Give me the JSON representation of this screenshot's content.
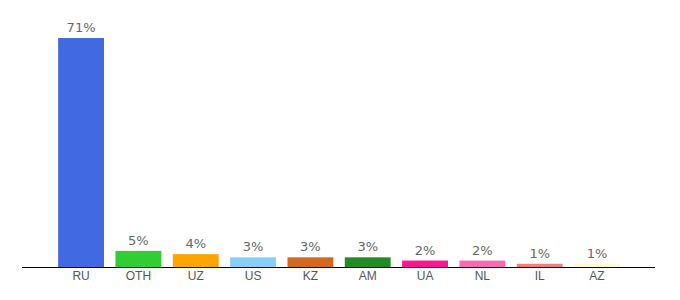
{
  "chart_data": {
    "type": "bar",
    "categories": [
      "RU",
      "OTH",
      "UZ",
      "US",
      "KZ",
      "AM",
      "UA",
      "NL",
      "IL",
      "AZ"
    ],
    "values": [
      71,
      5,
      4,
      3,
      3,
      3,
      2,
      2,
      1,
      1
    ],
    "value_labels": [
      "71%",
      "5%",
      "4%",
      "3%",
      "3%",
      "3%",
      "2%",
      "2%",
      "1%",
      "1%"
    ],
    "colors": [
      "#4169e1",
      "#32cd32",
      "#ffa500",
      "#87cefa",
      "#d2691e",
      "#228b22",
      "#ff1493",
      "#ff69b4",
      "#f08080",
      "#fffacd"
    ],
    "ylim": [
      0,
      71
    ],
    "data_labels": true,
    "tick_labels": "x",
    "grid": false
  }
}
